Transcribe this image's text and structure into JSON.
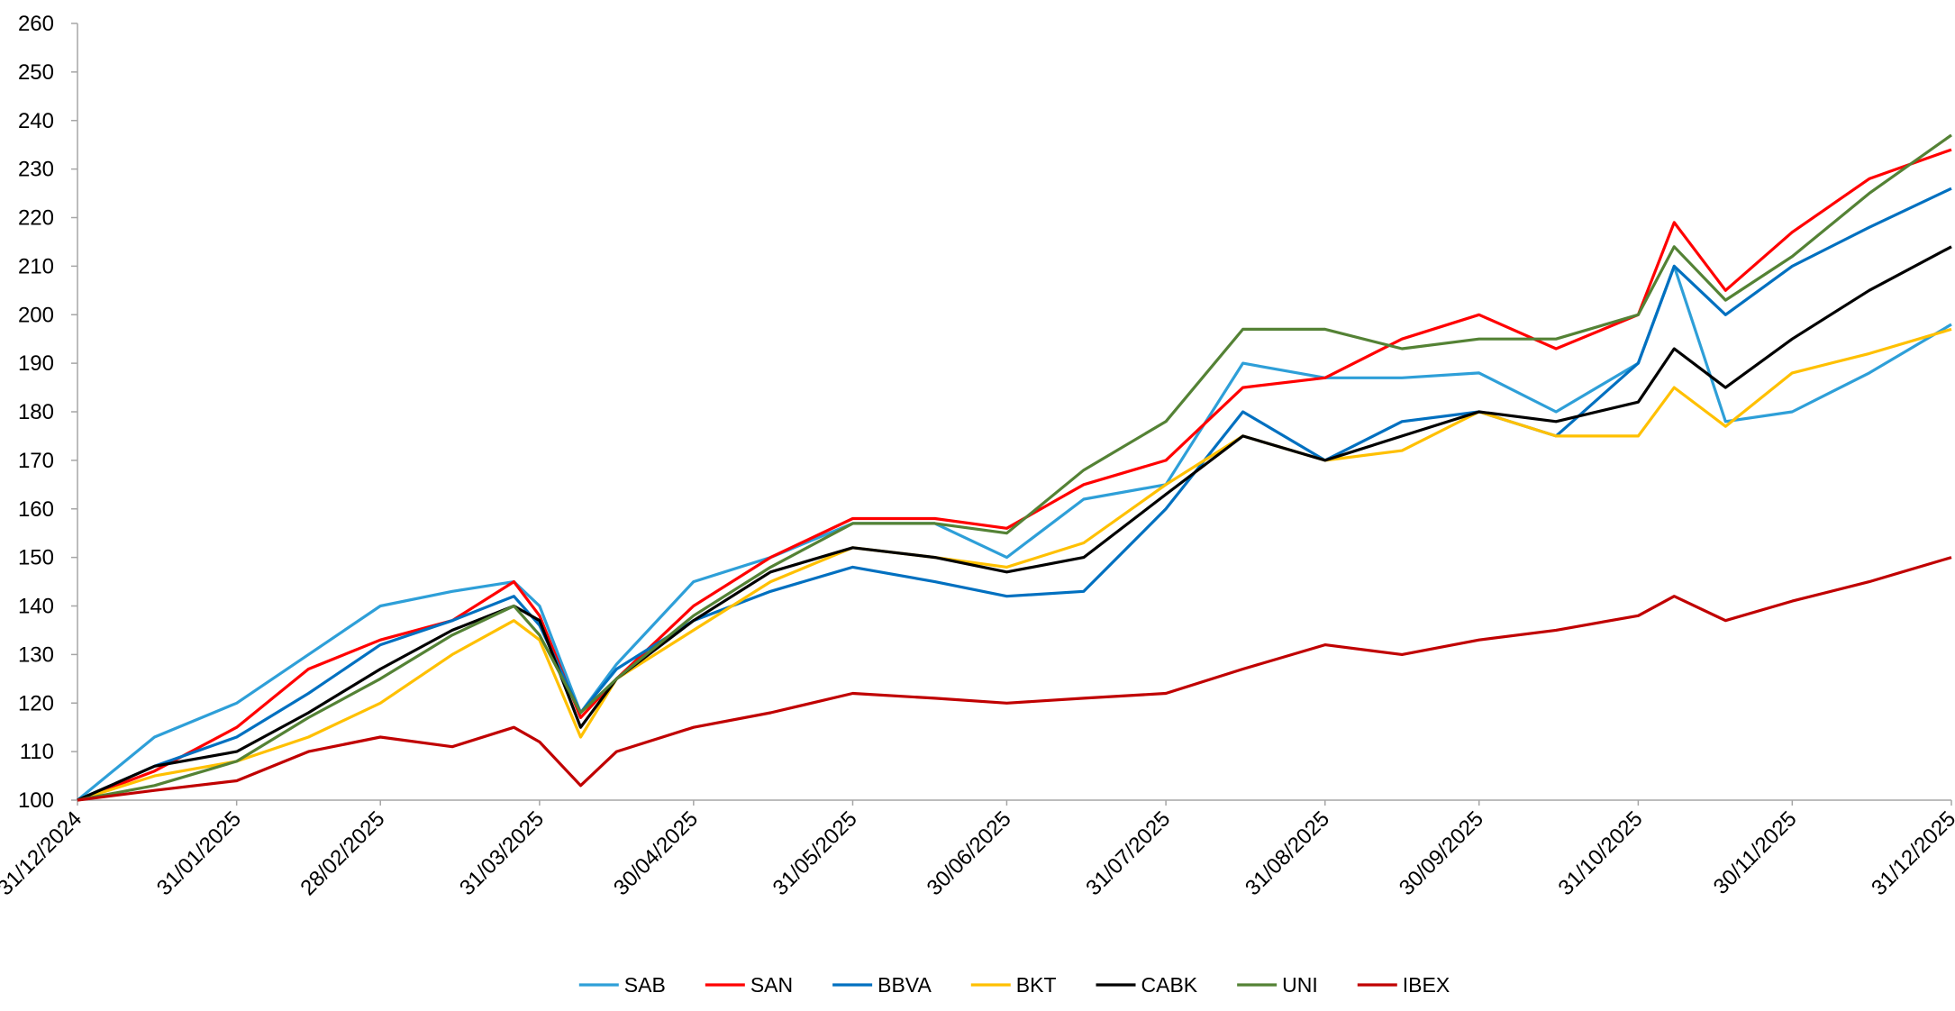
{
  "chart_data": {
    "type": "line",
    "x": [
      "31/12/2024",
      "15/01/2025",
      "31/01/2025",
      "14/02/2025",
      "28/02/2025",
      "14/03/2025",
      "26/03/2025",
      "31/03/2025",
      "08/04/2025",
      "15/04/2025",
      "30/04/2025",
      "15/05/2025",
      "31/05/2025",
      "16/06/2025",
      "30/06/2025",
      "15/07/2025",
      "31/07/2025",
      "15/08/2025",
      "31/08/2025",
      "15/09/2025",
      "30/09/2025",
      "15/10/2025",
      "31/10/2025",
      "07/11/2025",
      "17/11/2025",
      "30/11/2025",
      "15/12/2025",
      "31/12/2025"
    ],
    "series": [
      {
        "name": "SAB",
        "color": "#2e9fd8",
        "values": [
          100,
          113,
          120,
          130,
          140,
          143,
          145,
          140,
          118,
          128,
          145,
          150,
          157,
          157,
          150,
          162,
          165,
          190,
          187,
          187,
          188,
          180,
          190,
          210,
          178,
          180,
          188,
          198
        ]
      },
      {
        "name": "SAN",
        "color": "#ff0000",
        "values": [
          100,
          106,
          115,
          127,
          133,
          137,
          145,
          138,
          117,
          125,
          140,
          150,
          158,
          158,
          156,
          165,
          170,
          185,
          187,
          195,
          200,
          193,
          200,
          219,
          205,
          217,
          228,
          234
        ]
      },
      {
        "name": "BBVA",
        "color": "#0070c0",
        "values": [
          100,
          107,
          113,
          122,
          132,
          137,
          142,
          136,
          118,
          127,
          137,
          143,
          148,
          145,
          142,
          143,
          160,
          180,
          170,
          178,
          180,
          175,
          190,
          210,
          200,
          210,
          218,
          226
        ]
      },
      {
        "name": "BKT",
        "color": "#ffc000",
        "values": [
          100,
          105,
          108,
          113,
          120,
          130,
          137,
          133,
          113,
          125,
          135,
          145,
          152,
          150,
          148,
          153,
          165,
          175,
          170,
          172,
          180,
          175,
          175,
          185,
          177,
          188,
          192,
          197
        ]
      },
      {
        "name": "CABK",
        "color": "#000000",
        "values": [
          100,
          107,
          110,
          118,
          127,
          135,
          140,
          137,
          115,
          125,
          137,
          147,
          152,
          150,
          147,
          150,
          163,
          175,
          170,
          175,
          180,
          178,
          182,
          193,
          185,
          195,
          205,
          214
        ]
      },
      {
        "name": "UNI",
        "color": "#548235",
        "values": [
          100,
          103,
          108,
          117,
          125,
          134,
          140,
          134,
          118,
          125,
          138,
          148,
          157,
          157,
          155,
          168,
          178,
          197,
          197,
          193,
          195,
          195,
          200,
          214,
          203,
          212,
          225,
          237
        ]
      },
      {
        "name": "IBEX",
        "color": "#c00000",
        "values": [
          100,
          102,
          104,
          110,
          113,
          111,
          115,
          112,
          103,
          110,
          115,
          118,
          122,
          121,
          120,
          121,
          122,
          127,
          132,
          130,
          133,
          135,
          138,
          142,
          137,
          141,
          145,
          150
        ]
      }
    ],
    "xlim": [
      "31/12/2024",
      "31/12/2025"
    ],
    "xticks": [
      "31/12/2024",
      "31/01/2025",
      "28/02/2025",
      "31/03/2025",
      "30/04/2025",
      "31/05/2025",
      "30/06/2025",
      "31/07/2025",
      "31/08/2025",
      "30/09/2025",
      "31/10/2025",
      "30/11/2025",
      "31/12/2025"
    ],
    "ylim": [
      100,
      260
    ],
    "yticks": [
      100,
      110,
      120,
      130,
      140,
      150,
      160,
      170,
      180,
      190,
      200,
      210,
      220,
      230,
      240,
      250,
      260
    ],
    "grid": false,
    "legend": "bottom"
  }
}
